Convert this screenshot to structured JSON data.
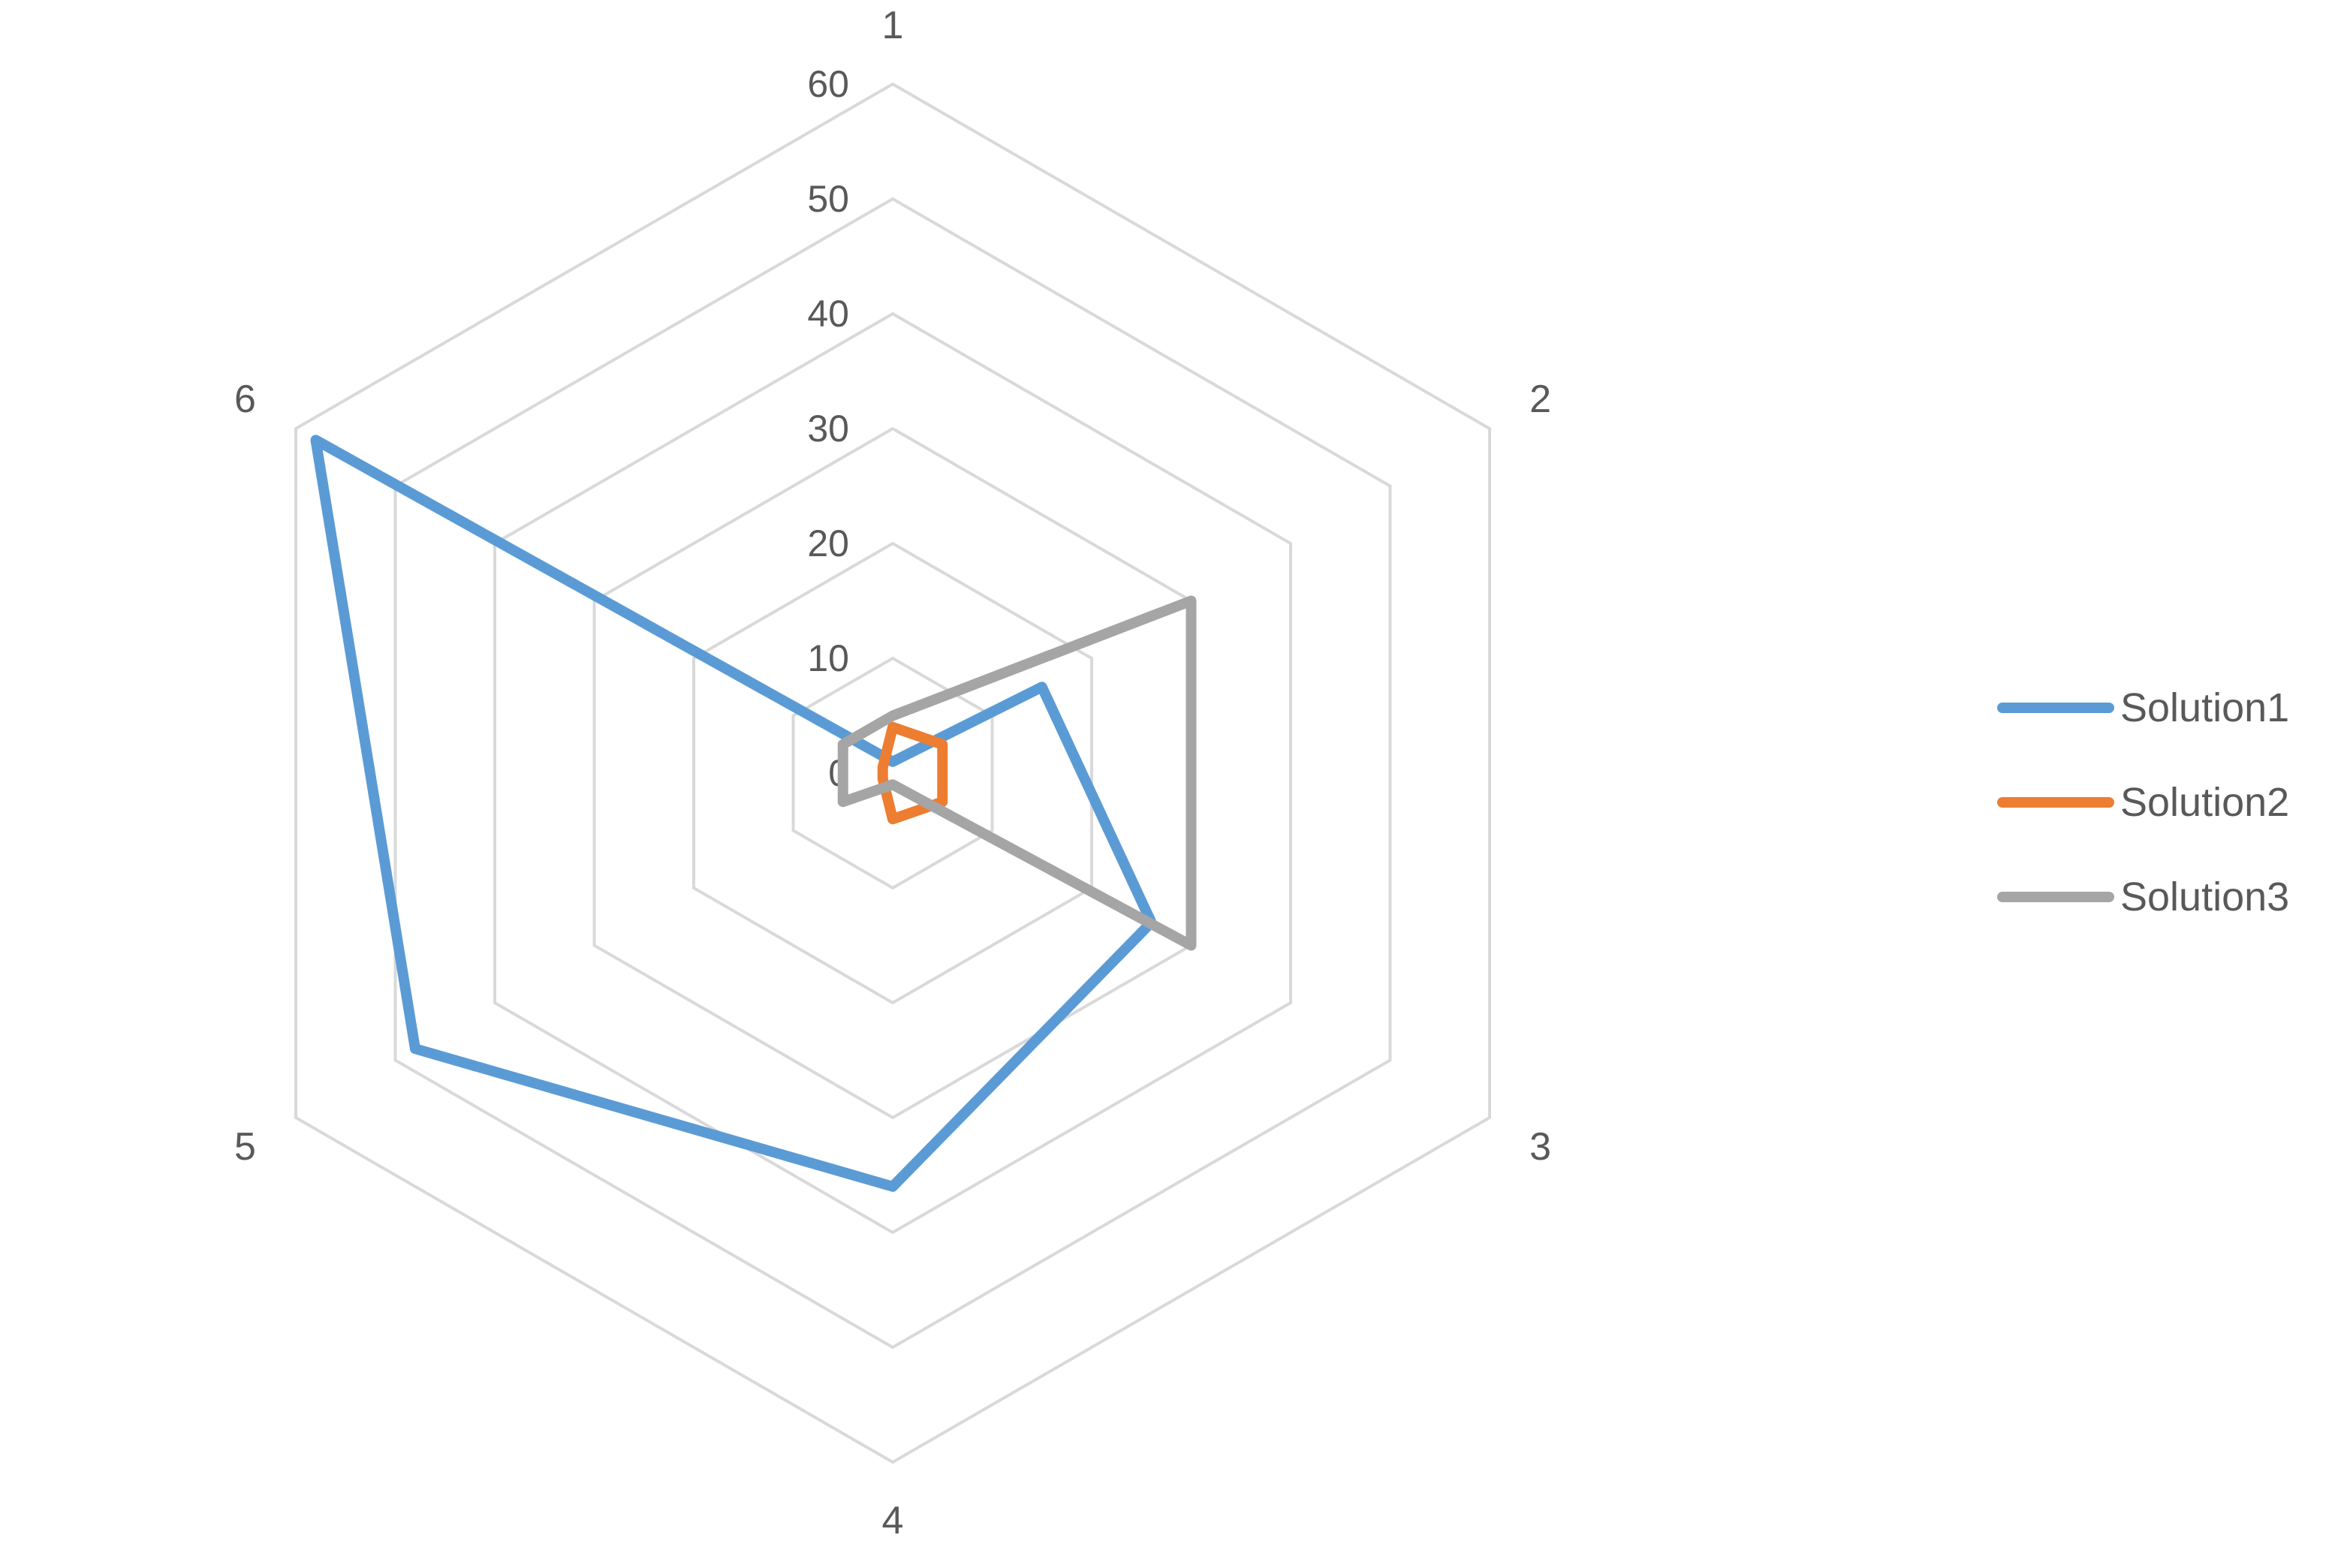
{
  "chart_data": {
    "type": "radar",
    "categories": [
      "1",
      "2",
      "3",
      "4",
      "5",
      "6"
    ],
    "rlim": [
      0,
      60
    ],
    "ticks": [
      "0",
      "10",
      "20",
      "30",
      "40",
      "50",
      "60"
    ],
    "grid": true,
    "legend_position": "right",
    "series": [
      {
        "name": "Solution1",
        "color": "#5B9BD5",
        "values": [
          1,
          15,
          26,
          36,
          48,
          58
        ]
      },
      {
        "name": "Solution2",
        "color": "#ED7D31",
        "values": [
          4,
          5,
          5,
          4,
          1,
          1
        ]
      },
      {
        "name": "Solution3",
        "color": "#A5A5A5",
        "values": [
          5,
          30,
          30,
          1,
          5,
          5
        ]
      }
    ]
  }
}
